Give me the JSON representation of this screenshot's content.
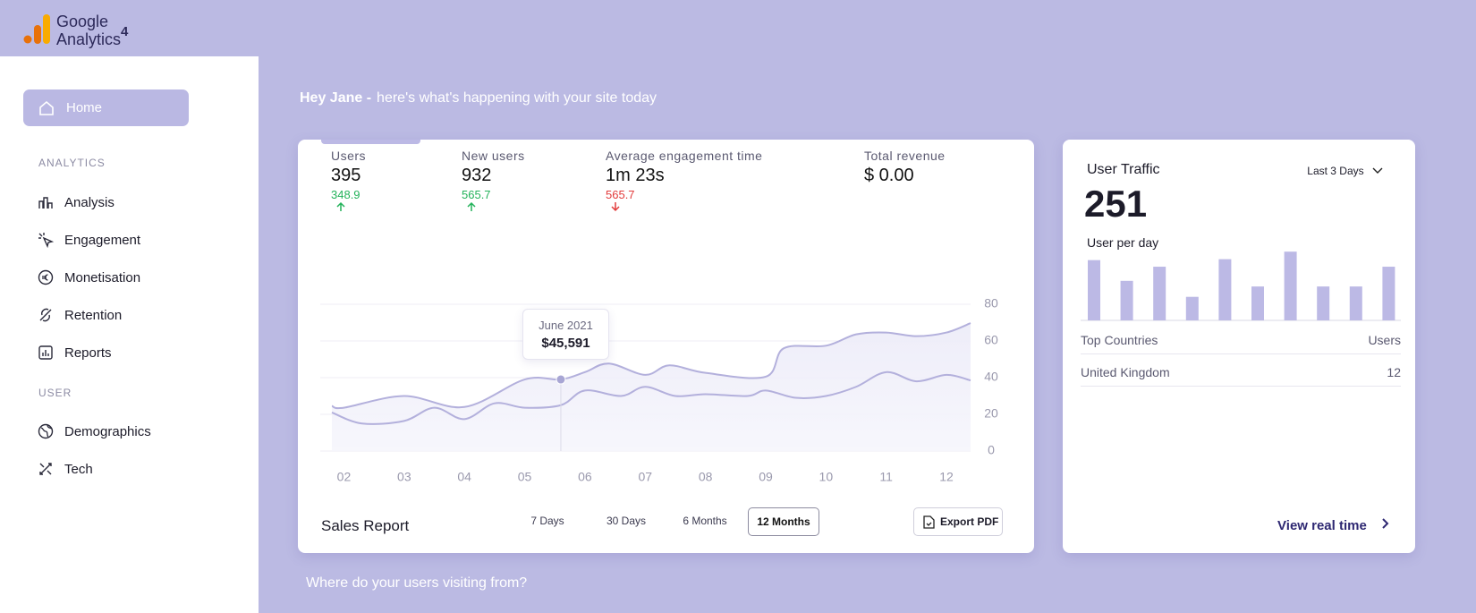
{
  "header": {
    "logo_title": "Google",
    "logo_subtitle": "Analytics",
    "logo_version": "4"
  },
  "sidebar": {
    "home": "Home",
    "sections": [
      {
        "title": "ANALYTICS",
        "items": [
          "Analysis",
          "Engagement",
          "Monetisation",
          "Retention",
          "Reports"
        ]
      },
      {
        "title": "USER",
        "items": [
          "Demographics",
          "Tech"
        ]
      }
    ]
  },
  "greeting": {
    "name": "Hey Jane -",
    "message": "here's what's happening with your site today"
  },
  "metrics": [
    {
      "label": "Users",
      "value": "395",
      "change": "348.9",
      "trend": "up"
    },
    {
      "label": "New users",
      "value": "932",
      "change": "565.7",
      "trend": "up"
    },
    {
      "label": "Average engagement time",
      "value": "1m 23s",
      "change": "565.7",
      "trend": "down"
    },
    {
      "label": "Total revenue",
      "value": "$ 0.00"
    }
  ],
  "sales_chart": {
    "type": "line",
    "title": "Sales Report",
    "series": [
      {
        "color": "#b3b0dc",
        "x": [
          1.8,
          2,
          3,
          4,
          5,
          5.6,
          6,
          6.4,
          7,
          7.4,
          8,
          9,
          9.3,
          10,
          10.5,
          11,
          11.5,
          12,
          12.4
        ],
        "values": [
          24.6,
          23.6,
          30,
          24,
          39,
          39,
          43,
          47.7,
          41.5,
          46.7,
          42.6,
          40.5,
          56,
          57.4,
          63.6,
          64.6,
          62.6,
          64.6,
          69.7
        ]
      },
      {
        "color": "#b3b0dc",
        "x": [
          1.8,
          2.3,
          3,
          3.5,
          4,
          4.5,
          5,
          5.6,
          6,
          6.6,
          7,
          7.5,
          8,
          8.7,
          9,
          9.5,
          10,
          10.5,
          11,
          11.5,
          12,
          12.4
        ],
        "values": [
          21,
          15,
          16.4,
          23.6,
          17.4,
          26,
          23.6,
          25,
          33,
          30,
          35,
          30,
          31,
          30,
          33,
          29,
          30,
          35,
          43,
          38,
          41.5,
          38.5
        ]
      }
    ],
    "xlim": [
      1.8,
      12.4
    ],
    "xticks": [
      {
        "value": 2,
        "label": "02"
      },
      {
        "value": 3,
        "label": "03"
      },
      {
        "value": 4,
        "label": "04"
      },
      {
        "value": 5,
        "label": "05"
      },
      {
        "value": 6,
        "label": "06"
      },
      {
        "value": 7,
        "label": "07"
      },
      {
        "value": 8,
        "label": "08"
      },
      {
        "value": 9,
        "label": "09"
      },
      {
        "value": 10,
        "label": "10"
      },
      {
        "value": 11,
        "label": "11"
      },
      {
        "value": 12,
        "label": "12"
      }
    ],
    "ylim": [
      0,
      80
    ],
    "yticks": [
      0,
      20,
      40,
      60,
      80
    ],
    "grid": true,
    "tooltip": {
      "label": "June 2021",
      "value": "$45,591",
      "series_index": 0,
      "point_index": 5
    }
  },
  "range_buttons": [
    "7 Days",
    "30 Days",
    "6 Months",
    "12 Months"
  ],
  "selected_range_index": 3,
  "export_button": "Export PDF",
  "traffic": {
    "title": "User Traffic",
    "period": "Last 3 Days",
    "total": "251",
    "subtitle": "User per day",
    "bars": {
      "type": "bar",
      "color": "#bcb9e5",
      "values": [
        64,
        42,
        57,
        25,
        65,
        36,
        73,
        36,
        36,
        57
      ]
    },
    "link": "View real time"
  },
  "countries": {
    "header": [
      "Top Countries",
      "Users"
    ],
    "rows": [
      [
        "United Kingdom",
        "12"
      ]
    ]
  },
  "footer_question": "Where do your  users visiting from?"
}
